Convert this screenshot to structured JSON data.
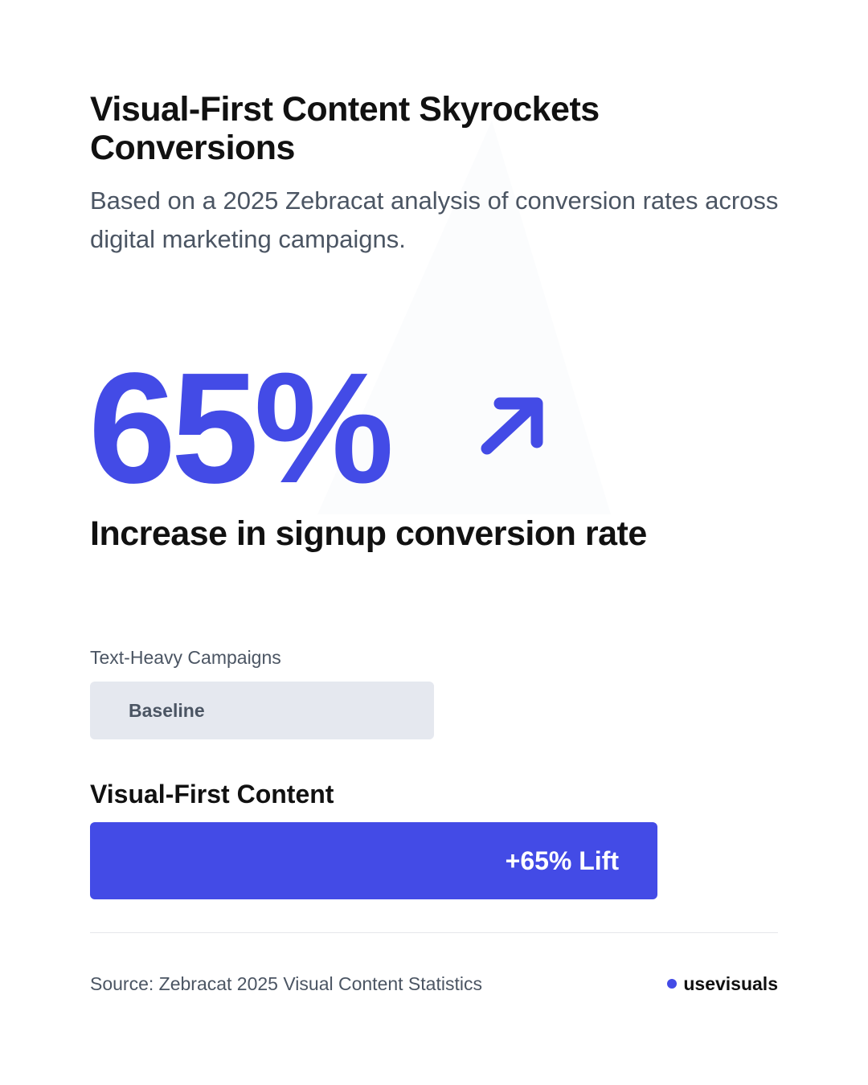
{
  "title": "Visual-First Content Skyrockets Conversions",
  "subtitle": "Based on a 2025 Zebracat analysis of conversion rates across digital marketing campaigns.",
  "headline_stat": {
    "value": "65%",
    "label": "Increase in signup conversion rate",
    "icon": "arrow-up-right-icon"
  },
  "colors": {
    "accent": "#434be6",
    "baseline_bar": "#e5e8ef",
    "text_primary": "#111111",
    "text_secondary": "#4b5563"
  },
  "chart_data": {
    "type": "bar",
    "orientation": "horizontal",
    "categories": [
      "Text-Heavy Campaigns",
      "Visual-First Content"
    ],
    "values": [
      100,
      165
    ],
    "bar_labels": [
      "Baseline",
      "+65% Lift"
    ],
    "title": "",
    "xlabel": "",
    "ylabel": "",
    "grid": false
  },
  "footer": {
    "source": "Source: Zebracat 2025 Visual Content Statistics",
    "brand": "usevisuals"
  }
}
